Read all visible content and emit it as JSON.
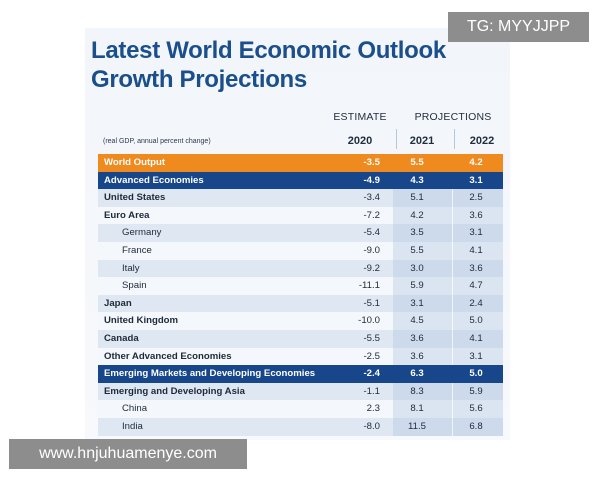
{
  "title": {
    "line1": "Latest World Economic Outlook",
    "line2": "Growth Projections"
  },
  "header": {
    "estimate": "ESTIMATE",
    "projections": "PROJECTIONS",
    "note": "(real GDP, annual percent change)",
    "years": [
      "2020",
      "2021",
      "2022"
    ]
  },
  "rows": [
    {
      "label": "World Output",
      "v2020": "-3.5",
      "v2021": "5.5",
      "v2022": "4.2"
    },
    {
      "label": "Advanced Economies",
      "v2020": "-4.9",
      "v2021": "4.3",
      "v2022": "3.1"
    },
    {
      "label": "United States",
      "v2020": "-3.4",
      "v2021": "5.1",
      "v2022": "2.5"
    },
    {
      "label": "Euro Area",
      "v2020": "-7.2",
      "v2021": "4.2",
      "v2022": "3.6"
    },
    {
      "label": "Germany",
      "v2020": "-5.4",
      "v2021": "3.5",
      "v2022": "3.1"
    },
    {
      "label": "France",
      "v2020": "-9.0",
      "v2021": "5.5",
      "v2022": "4.1"
    },
    {
      "label": "Italy",
      "v2020": "-9.2",
      "v2021": "3.0",
      "v2022": "3.6"
    },
    {
      "label": "Spain",
      "v2020": "-11.1",
      "v2021": "5.9",
      "v2022": "4.7"
    },
    {
      "label": "Japan",
      "v2020": "-5.1",
      "v2021": "3.1",
      "v2022": "2.4"
    },
    {
      "label": "United Kingdom",
      "v2020": "-10.0",
      "v2021": "4.5",
      "v2022": "5.0"
    },
    {
      "label": "Canada",
      "v2020": "-5.5",
      "v2021": "3.6",
      "v2022": "4.1"
    },
    {
      "label": "Other Advanced Economies",
      "v2020": "-2.5",
      "v2021": "3.6",
      "v2022": "3.1"
    },
    {
      "label": "Emerging Markets and Developing Economies",
      "v2020": "-2.4",
      "v2021": "6.3",
      "v2022": "5.0"
    },
    {
      "label": "Emerging and Developing Asia",
      "v2020": "-1.1",
      "v2021": "8.3",
      "v2022": "5.9"
    },
    {
      "label": "China",
      "v2020": "2.3",
      "v2021": "8.1",
      "v2022": "5.6"
    },
    {
      "label": "India",
      "v2020": "-8.0",
      "v2021": "11.5",
      "v2022": "6.8"
    }
  ],
  "watermarks": {
    "top_right": "TG: MYYJJPP",
    "bottom_left": "www.hnjuhuamenye.com"
  },
  "colors": {
    "title": "#1a4f8c",
    "highlight_orange": "#ef8a1f",
    "highlight_blue": "#17478a"
  }
}
